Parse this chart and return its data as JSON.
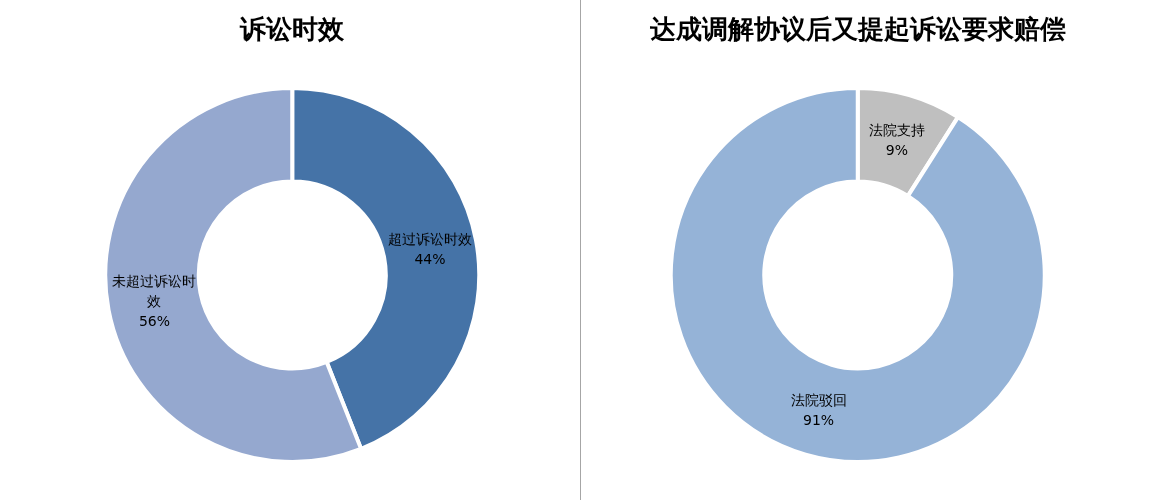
{
  "chart_data": [
    {
      "type": "donut",
      "title": "诉讼时效",
      "categories": [
        "超过诉讼时效",
        "未超过诉讼时效"
      ],
      "values": [
        44,
        56
      ],
      "colors": [
        "#4573a7",
        "#95a8cf"
      ],
      "value_labels": [
        "44%",
        "56%"
      ]
    },
    {
      "type": "donut",
      "title": "达成调解协议后又提起诉讼要求赔偿",
      "categories": [
        "法院支持",
        "法院驳回"
      ],
      "values": [
        9,
        91
      ],
      "colors": [
        "#bfbfbf",
        "#95b3d7"
      ],
      "value_labels": [
        "9%",
        "91%"
      ]
    }
  ]
}
